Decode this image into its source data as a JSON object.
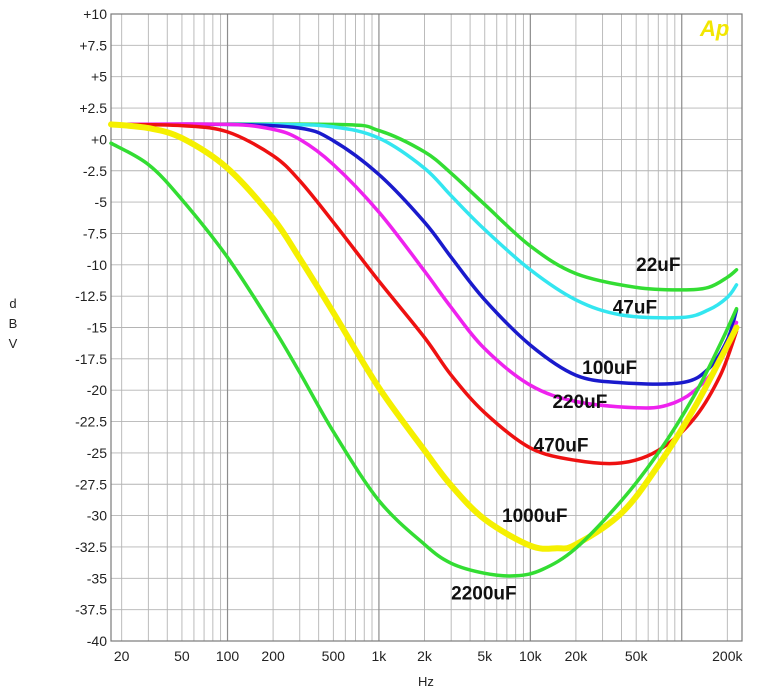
{
  "logo": "Ap",
  "chart_data": {
    "type": "line",
    "xlabel": "Hz",
    "ylabel": "dBV",
    "ylabel_letters": [
      "d",
      "B",
      "V"
    ],
    "xscale": "log",
    "xlim": [
      17,
      250000
    ],
    "ylim": [
      -40,
      10
    ],
    "grid": true,
    "x_ticks": [
      20,
      50,
      100,
      200,
      500,
      1000,
      2000,
      5000,
      10000,
      20000,
      50000,
      200000
    ],
    "x_tick_labels": [
      "20",
      "50",
      "100",
      "200",
      "500",
      "1k",
      "2k",
      "5k",
      "10k",
      "20k",
      "50k",
      "200k"
    ],
    "y_ticks": [
      10,
      7.5,
      5,
      2.5,
      0,
      -2.5,
      -5,
      -7.5,
      -10,
      -12.5,
      -15,
      -17.5,
      -20,
      -22.5,
      -25,
      -27.5,
      -30,
      -32.5,
      -35,
      -37.5,
      -40
    ],
    "y_tick_labels": [
      "+10",
      "+7.5",
      "+5",
      "+2.5",
      "+0",
      "-2.5",
      "-5",
      "-7.5",
      "-10",
      "-12.5",
      "-15",
      "-17.5",
      "-20",
      "-22.5",
      "-25",
      "-27.5",
      "-30",
      "-32.5",
      "-35",
      "-37.5",
      "-40"
    ],
    "series": [
      {
        "name": "22uF",
        "color": "#33dd33",
        "width": 3.5,
        "label_at": [
          50000,
          -10.5
        ],
        "points": [
          [
            17,
            1.2
          ],
          [
            500,
            1.2
          ],
          [
            1000,
            0.7
          ],
          [
            2000,
            -1.0
          ],
          [
            3000,
            -2.7
          ],
          [
            5000,
            -5.2
          ],
          [
            10000,
            -8.5
          ],
          [
            20000,
            -10.7
          ],
          [
            50000,
            -11.8
          ],
          [
            100000,
            -12.0
          ],
          [
            150000,
            -11.8
          ],
          [
            200000,
            -11.0
          ],
          [
            230000,
            -10.4
          ]
        ]
      },
      {
        "name": "47uF",
        "color": "#33e6f0",
        "width": 3.5,
        "label_at": [
          35000,
          -13.9
        ],
        "points": [
          [
            17,
            1.2
          ],
          [
            200,
            1.2
          ],
          [
            500,
            1.0
          ],
          [
            1000,
            0.1
          ],
          [
            2000,
            -2.3
          ],
          [
            3000,
            -4.5
          ],
          [
            5000,
            -7.2
          ],
          [
            10000,
            -10.4
          ],
          [
            20000,
            -12.8
          ],
          [
            40000,
            -14.0
          ],
          [
            100000,
            -14.2
          ],
          [
            150000,
            -13.6
          ],
          [
            200000,
            -12.6
          ],
          [
            230000,
            -11.6
          ]
        ]
      },
      {
        "name": "100uF",
        "color": "#1a1acc",
        "width": 3.5,
        "label_at": [
          22000,
          -18.7
        ],
        "points": [
          [
            17,
            1.2
          ],
          [
            100,
            1.2
          ],
          [
            300,
            0.9
          ],
          [
            500,
            -0.1
          ],
          [
            1000,
            -2.8
          ],
          [
            2000,
            -6.6
          ],
          [
            3000,
            -9.4
          ],
          [
            5000,
            -12.8
          ],
          [
            10000,
            -16.4
          ],
          [
            20000,
            -18.8
          ],
          [
            40000,
            -19.4
          ],
          [
            100000,
            -19.4
          ],
          [
            150000,
            -18.3
          ],
          [
            200000,
            -16.0
          ],
          [
            230000,
            -13.6
          ]
        ]
      },
      {
        "name": "220uF",
        "color": "#ee22ee",
        "width": 3.5,
        "label_at": [
          14000,
          -21.4
        ],
        "points": [
          [
            17,
            1.2
          ],
          [
            100,
            1.2
          ],
          [
            200,
            0.8
          ],
          [
            300,
            0.0
          ],
          [
            500,
            -2.0
          ],
          [
            1000,
            -5.8
          ],
          [
            2000,
            -10.5
          ],
          [
            3000,
            -13.4
          ],
          [
            5000,
            -16.7
          ],
          [
            10000,
            -19.6
          ],
          [
            20000,
            -20.9
          ],
          [
            50000,
            -21.4
          ],
          [
            80000,
            -21.2
          ],
          [
            120000,
            -20.1
          ],
          [
            180000,
            -17.7
          ],
          [
            230000,
            -14.6
          ]
        ]
      },
      {
        "name": "470uF",
        "color": "#ee1111",
        "width": 3.5,
        "label_at": [
          10500,
          -24.9
        ],
        "points": [
          [
            17,
            1.2
          ],
          [
            50,
            1.1
          ],
          [
            100,
            0.6
          ],
          [
            200,
            -1.3
          ],
          [
            300,
            -3.3
          ],
          [
            500,
            -6.6
          ],
          [
            1000,
            -11.3
          ],
          [
            2000,
            -15.8
          ],
          [
            3000,
            -18.8
          ],
          [
            5000,
            -21.8
          ],
          [
            10000,
            -24.6
          ],
          [
            20000,
            -25.6
          ],
          [
            40000,
            -25.8
          ],
          [
            70000,
            -24.8
          ],
          [
            120000,
            -22.3
          ],
          [
            180000,
            -18.8
          ],
          [
            230000,
            -15.3
          ]
        ]
      },
      {
        "name": "1000uF",
        "color": "#f5f000",
        "width": 6,
        "label_at": [
          6500,
          -30.5
        ],
        "points": [
          [
            17,
            1.2
          ],
          [
            30,
            0.9
          ],
          [
            50,
            0.1
          ],
          [
            100,
            -2.3
          ],
          [
            200,
            -6.3
          ],
          [
            300,
            -9.5
          ],
          [
            500,
            -13.8
          ],
          [
            1000,
            -19.8
          ],
          [
            2000,
            -24.8
          ],
          [
            3000,
            -27.6
          ],
          [
            5000,
            -30.3
          ],
          [
            10000,
            -32.4
          ],
          [
            15000,
            -32.6
          ],
          [
            20000,
            -32.3
          ],
          [
            40000,
            -29.8
          ],
          [
            70000,
            -26.0
          ],
          [
            120000,
            -21.5
          ],
          [
            180000,
            -17.5
          ],
          [
            230000,
            -15.0
          ]
        ]
      },
      {
        "name": "2200uF",
        "color": "#33dd33",
        "width": 3.5,
        "label_at": [
          3000,
          -36.7
        ],
        "points": [
          [
            17,
            -0.3
          ],
          [
            30,
            -2.0
          ],
          [
            50,
            -4.8
          ],
          [
            100,
            -9.4
          ],
          [
            200,
            -15.0
          ],
          [
            300,
            -18.6
          ],
          [
            500,
            -23.3
          ],
          [
            1000,
            -28.8
          ],
          [
            2000,
            -32.3
          ],
          [
            3000,
            -33.8
          ],
          [
            5000,
            -34.6
          ],
          [
            8000,
            -34.8
          ],
          [
            12000,
            -34.3
          ],
          [
            20000,
            -32.6
          ],
          [
            40000,
            -28.8
          ],
          [
            70000,
            -25.0
          ],
          [
            120000,
            -20.5
          ],
          [
            180000,
            -16.3
          ],
          [
            230000,
            -13.5
          ]
        ]
      }
    ]
  }
}
